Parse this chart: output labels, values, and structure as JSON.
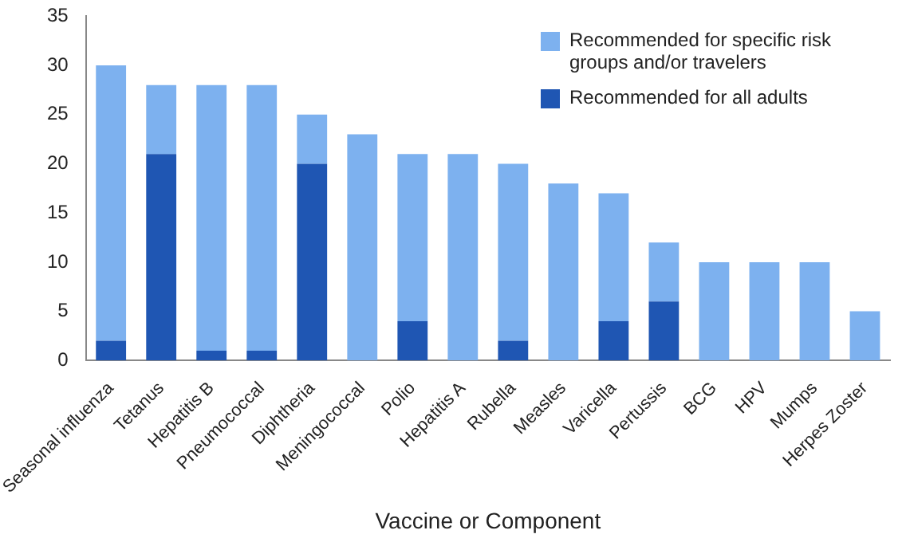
{
  "chart_data": {
    "type": "bar",
    "stacked": true,
    "xlabel": "Vaccine or Component",
    "categories": [
      "Seasonal influenza",
      "Tetanus",
      "Hepatitis B",
      "Pneumococcal",
      "Diphtheria",
      "Meningococcal",
      "Polio",
      "Hepatitis A",
      "Rubella",
      "Measles",
      "Varicella",
      "Pertussis",
      "BCG",
      "HPV",
      "Mumps",
      "Herpes Zoster"
    ],
    "series": [
      {
        "name": "Recommended for all adults",
        "color": "#1f56b3",
        "values": [
          2,
          21,
          1,
          1,
          20,
          0,
          4,
          0,
          2,
          0,
          4,
          6,
          0,
          0,
          0,
          0
        ]
      },
      {
        "name": "Recommended for specific risk groups and/or travelers",
        "color": "#7db1ef",
        "values": [
          28,
          7,
          27,
          27,
          5,
          23,
          17,
          21,
          18,
          18,
          13,
          6,
          10,
          10,
          10,
          5
        ]
      }
    ],
    "ylim": [
      0,
      35
    ],
    "yticks": [
      0,
      5,
      10,
      15,
      20,
      25,
      30,
      35
    ],
    "grid": false,
    "legend": "top right"
  }
}
